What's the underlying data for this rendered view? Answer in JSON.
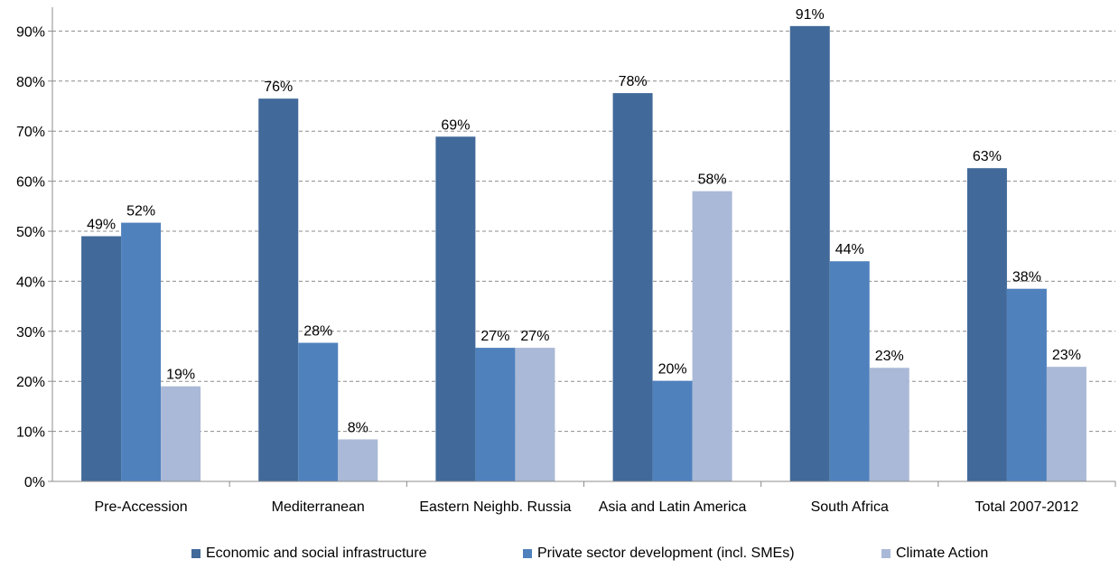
{
  "chart_data": {
    "type": "bar",
    "categories": [
      "Pre-Accession",
      "Mediterranean",
      "Eastern Neighb. Russia",
      "Asia and Latin America",
      "South Africa",
      "Total 2007-2012"
    ],
    "series": [
      {
        "name": "Economic and social infrastructure",
        "color": "#416999",
        "values": [
          49,
          76.5,
          68.9,
          77.6,
          91,
          62.6
        ],
        "labels": [
          "49%",
          "76%",
          "69%",
          "78%",
          "91%",
          "63%"
        ]
      },
      {
        "name": "Private sector development (incl. SMEs)",
        "color": "#4F81BD",
        "values": [
          51.7,
          27.7,
          26.7,
          20.1,
          44,
          38.5
        ],
        "labels": [
          "52%",
          "28%",
          "27%",
          "20%",
          "44%",
          "38%"
        ]
      },
      {
        "name": "Climate Action",
        "color": "#AAB9D7",
        "values": [
          19,
          8.4,
          26.7,
          58,
          22.7,
          22.9
        ],
        "labels": [
          "19%",
          "8%",
          "27%",
          "58%",
          "23%",
          "23%"
        ]
      }
    ],
    "ylim": [
      0,
      95
    ],
    "yticks": [
      0,
      10,
      20,
      30,
      40,
      50,
      60,
      70,
      80,
      90
    ],
    "ytick_labels": [
      "0%",
      "10%",
      "20%",
      "30%",
      "40%",
      "50%",
      "60%",
      "70%",
      "80%",
      "90%"
    ],
    "grid": true,
    "legend_position": "bottom"
  }
}
